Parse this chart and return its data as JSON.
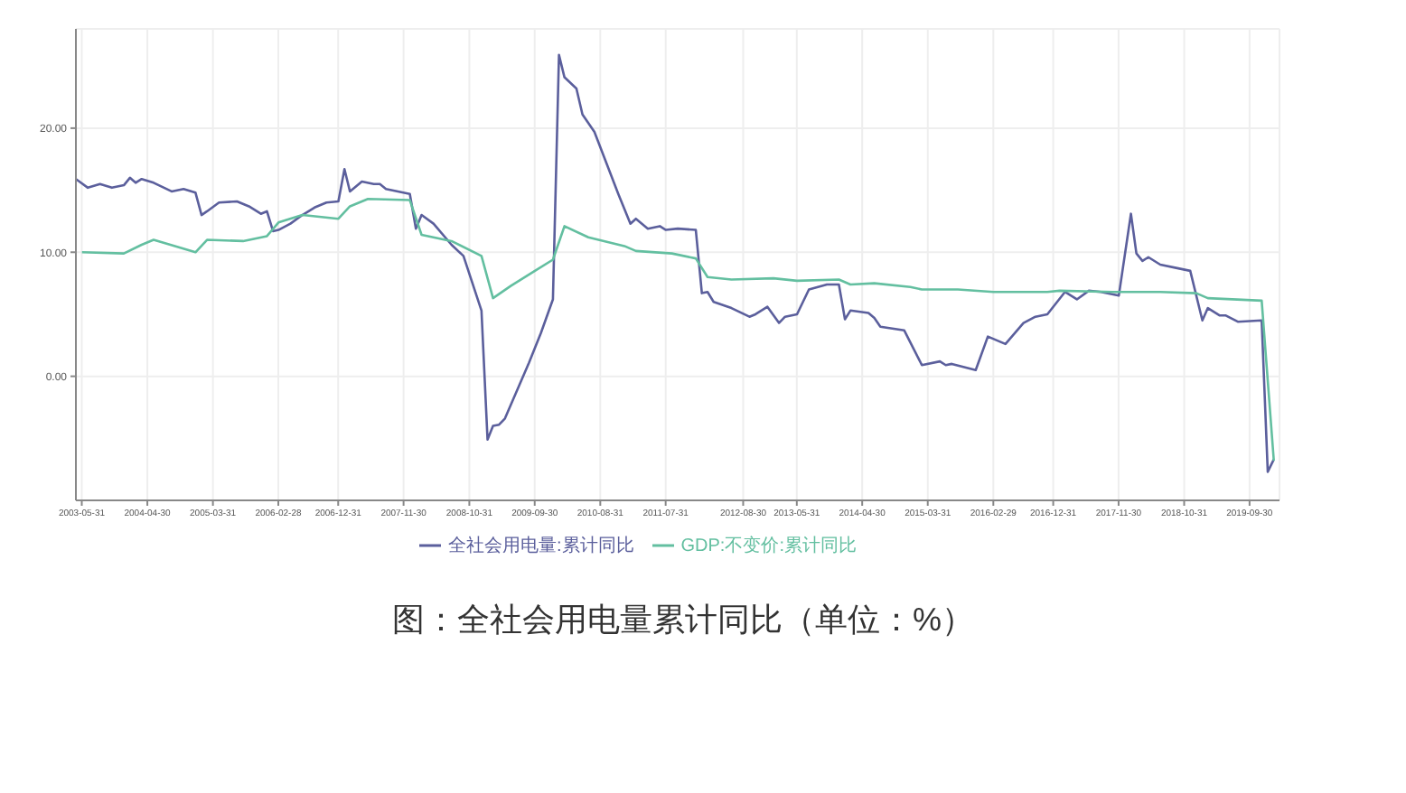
{
  "chart_data": {
    "type": "line",
    "title": "图：全社会用电量累计同比（单位：%）",
    "series": [
      {
        "name": "全社会用电量:累计同比",
        "color": "#5b5f9c",
        "x": [
          "2003-05",
          "2003-07",
          "2003-09",
          "2003-11",
          "2004-01",
          "2004-02",
          "2004-03",
          "2004-04",
          "2004-06",
          "2004-09",
          "2004-11",
          "2005-01",
          "2005-02",
          "2005-03",
          "2005-05",
          "2005-08",
          "2005-10",
          "2005-12",
          "2006-01",
          "2006-02",
          "2006-03",
          "2006-05",
          "2006-07",
          "2006-09",
          "2006-11",
          "2007-01",
          "2007-02",
          "2007-03",
          "2007-05",
          "2007-07",
          "2007-08",
          "2007-09",
          "2008-01",
          "2008-02",
          "2008-03",
          "2008-05",
          "2008-08",
          "2008-10",
          "2009-01",
          "2009-02",
          "2009-03",
          "2009-04",
          "2009-05",
          "2009-09",
          "2009-11",
          "2010-01",
          "2010-02",
          "2010-03",
          "2010-05",
          "2010-06",
          "2010-08",
          "2010-12",
          "2011-02",
          "2011-03",
          "2011-05",
          "2011-07",
          "2011-08",
          "2011-10",
          "2012-01",
          "2012-02",
          "2012-03",
          "2012-04",
          "2012-07",
          "2012-10",
          "2012-11",
          "2013-01",
          "2013-03",
          "2013-04",
          "2013-06",
          "2013-08",
          "2013-11",
          "2014-01",
          "2014-02",
          "2014-03",
          "2014-06",
          "2014-07",
          "2014-08",
          "2014-12",
          "2015-03",
          "2015-06",
          "2015-07",
          "2015-08",
          "2015-12",
          "2016-02",
          "2016-05",
          "2016-08",
          "2016-10",
          "2016-12",
          "2017-03",
          "2017-05",
          "2017-07",
          "2017-09",
          "2017-12",
          "2018-02",
          "2018-03",
          "2018-04",
          "2018-05",
          "2018-07",
          "2018-10",
          "2018-12",
          "2019-02",
          "2019-03",
          "2019-05",
          "2019-06",
          "2019-08",
          "2019-12",
          "2020-01",
          "2020-02"
        ],
        "values": [
          15.9,
          15.2,
          15.5,
          15.2,
          15.4,
          16.0,
          15.6,
          15.9,
          15.6,
          14.9,
          15.1,
          14.8,
          13.0,
          13.3,
          14.0,
          14.1,
          13.7,
          13.1,
          13.3,
          11.7,
          11.8,
          12.3,
          13.0,
          13.6,
          14.0,
          14.1,
          16.7,
          14.9,
          15.7,
          15.5,
          15.5,
          15.1,
          14.7,
          11.9,
          13.0,
          12.3,
          10.6,
          9.7,
          5.3,
          -5.1,
          -4.0,
          -3.9,
          -3.4,
          1.1,
          3.5,
          6.2,
          25.9,
          24.1,
          23.2,
          21.1,
          19.7,
          14.7,
          12.3,
          12.7,
          11.9,
          12.1,
          11.8,
          11.9,
          11.8,
          6.7,
          6.8,
          6.0,
          5.5,
          4.8,
          5.0,
          5.6,
          4.3,
          4.8,
          5.0,
          7.0,
          7.4,
          7.4,
          4.6,
          5.3,
          5.1,
          4.7,
          4.0,
          3.7,
          0.9,
          1.2,
          0.9,
          1.0,
          0.5,
          3.2,
          2.6,
          4.3,
          4.8,
          5.0,
          6.8,
          6.2,
          6.9,
          6.8,
          6.5,
          13.1,
          9.9,
          9.3,
          9.6,
          9.0,
          8.7,
          8.5,
          4.5,
          5.5,
          4.9,
          4.9,
          4.4,
          4.5,
          -7.7,
          -6.7
        ]
      },
      {
        "name": "GDP:不变价:累计同比",
        "color": "#63bfa0",
        "x": [
          "2003-06",
          "2004-01",
          "2004-04",
          "2004-06",
          "2005-01",
          "2005-03",
          "2005-09",
          "2006-01",
          "2006-03",
          "2006-07",
          "2007-01",
          "2007-03",
          "2007-06",
          "2008-01",
          "2008-03",
          "2008-08",
          "2009-01",
          "2009-03",
          "2009-06",
          "2009-10",
          "2010-01",
          "2010-03",
          "2010-07",
          "2011-01",
          "2011-03",
          "2011-09",
          "2012-01",
          "2012-03",
          "2012-07",
          "2013-02",
          "2013-06",
          "2014-01",
          "2014-03",
          "2014-07",
          "2015-01",
          "2015-03",
          "2015-09",
          "2016-03",
          "2016-12",
          "2017-02",
          "2017-11",
          "2018-07",
          "2019-01",
          "2019-03",
          "2019-12",
          "2020-02"
        ],
        "values": [
          10.0,
          9.9,
          10.6,
          11.0,
          10.0,
          11.0,
          10.9,
          11.3,
          12.4,
          13.0,
          12.7,
          13.7,
          14.3,
          14.2,
          11.4,
          10.9,
          9.7,
          6.3,
          7.3,
          8.5,
          9.4,
          12.1,
          11.2,
          10.5,
          10.1,
          9.9,
          9.5,
          8.0,
          7.8,
          7.9,
          7.7,
          7.8,
          7.4,
          7.5,
          7.2,
          7.0,
          7.0,
          6.8,
          6.8,
          6.9,
          6.8,
          6.8,
          6.7,
          6.3,
          6.1,
          -6.8
        ]
      }
    ],
    "xlim": [
      "2003-05",
      "2020-03"
    ],
    "xticks": [
      "2003-05-31",
      "2004-04-30",
      "2005-03-31",
      "2006-02-28",
      "2006-12-31",
      "2007-11-30",
      "2008-10-31",
      "2009-09-30",
      "2010-08-31",
      "2011-07-31",
      "2012-08-30",
      "2013-05-31",
      "2014-04-30",
      "2015-03-31",
      "2016-02-29",
      "2016-12-31",
      "2017-11-30",
      "2018-10-31",
      "2019-09-30"
    ],
    "ylim": [
      -10,
      28
    ],
    "yticks": [
      {
        "value": 0,
        "label": "0.00"
      },
      {
        "value": 10,
        "label": "10.00"
      },
      {
        "value": 20,
        "label": "20.00"
      }
    ],
    "grid": true,
    "legend": "bottom",
    "marker": "none",
    "line_style": "solid"
  }
}
